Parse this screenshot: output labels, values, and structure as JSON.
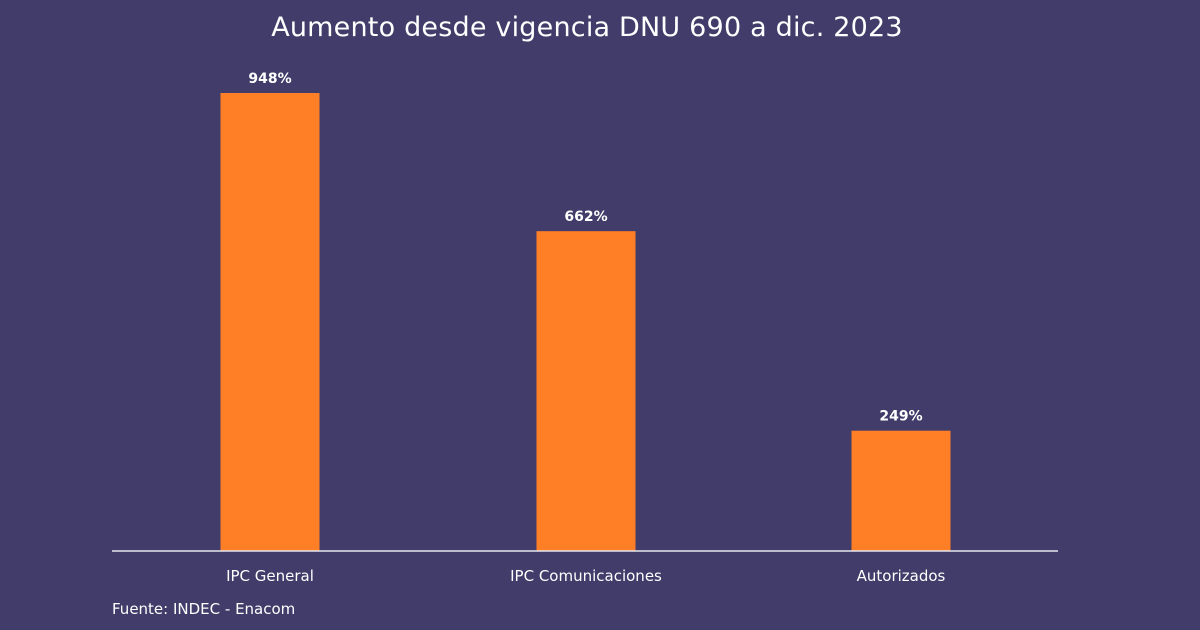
{
  "chart_data": {
    "type": "bar",
    "title": "Aumento desde vigencia DNU 690 a dic. 2023",
    "categories": [
      "IPC General",
      "IPC Comunicaciones",
      "Autorizados"
    ],
    "values": [
      948,
      662,
      249
    ],
    "data_labels": [
      "948%",
      "662%",
      "249%"
    ],
    "xlabel": "",
    "ylabel": "",
    "ylim": [
      0,
      1000
    ],
    "grid": false,
    "legend": "none",
    "bar_color": "#ff7f27",
    "axis_color": "#e6e6ee",
    "background_color": "#413c69"
  },
  "source": {
    "text": "Fuente: INDEC - Enacom"
  }
}
